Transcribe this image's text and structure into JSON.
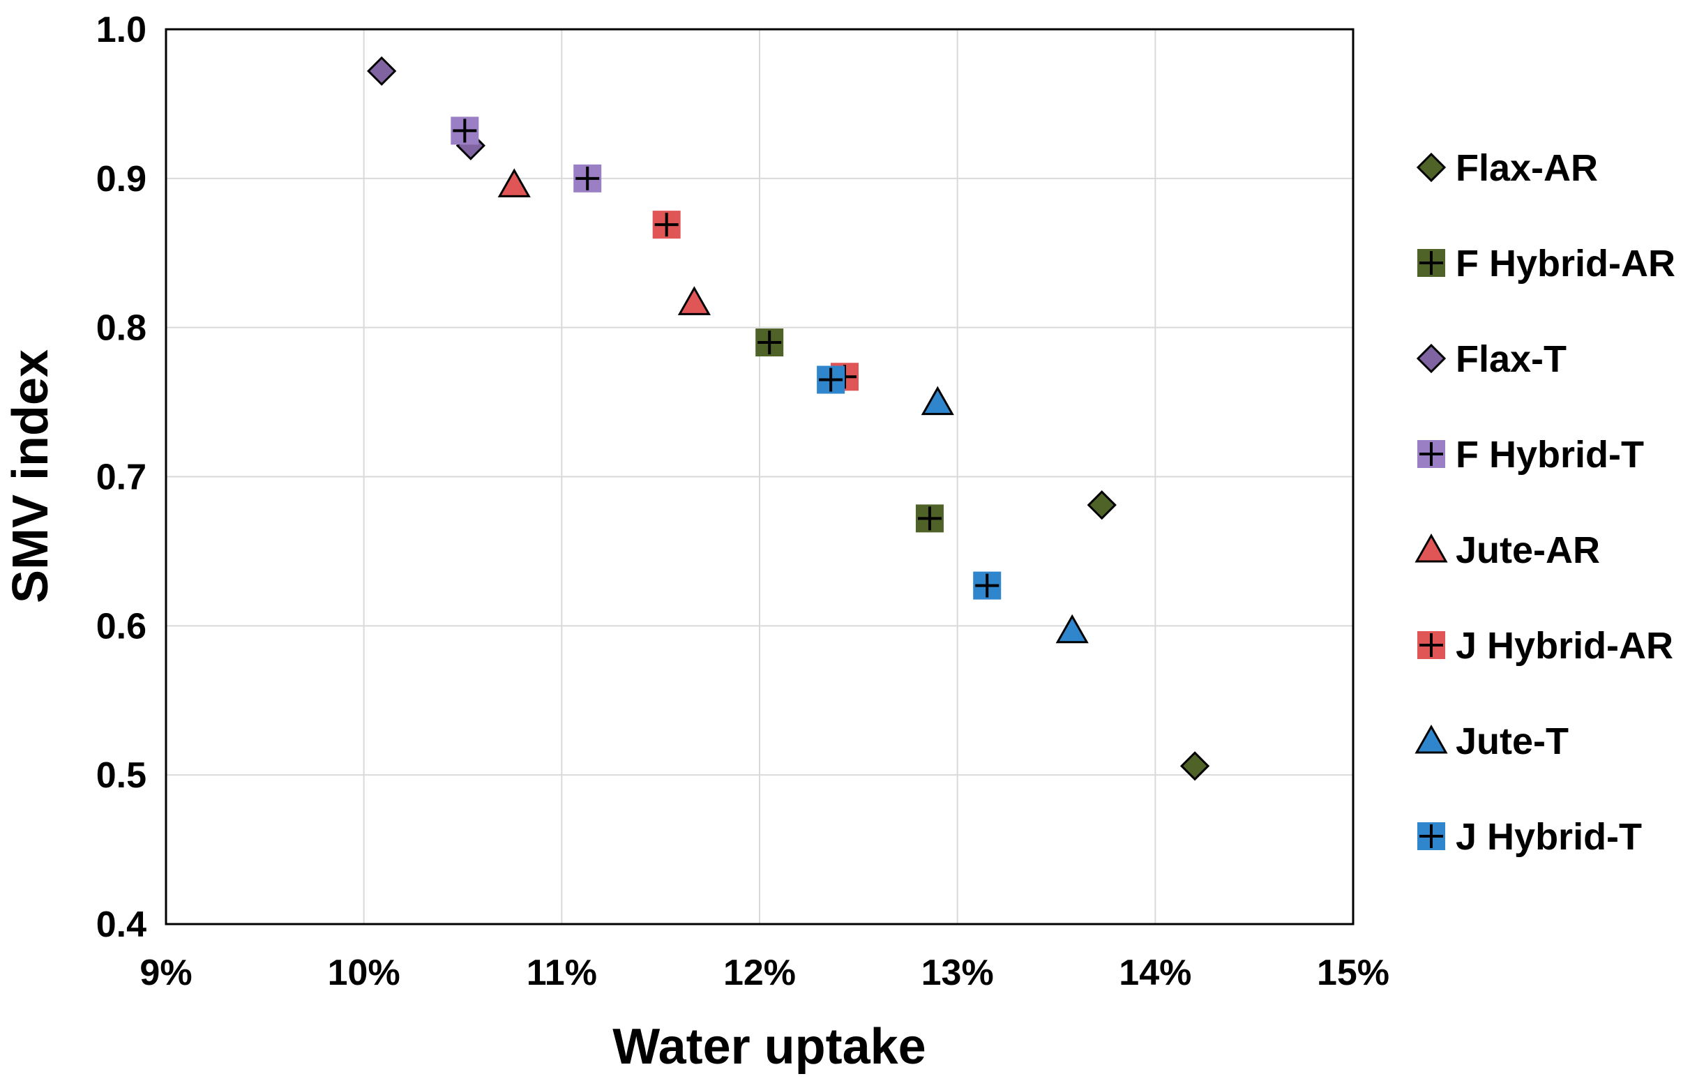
{
  "chart_data": {
    "type": "scatter",
    "title": "",
    "xlabel": "Water uptake",
    "ylabel": "SMV index",
    "xlim": [
      0.09,
      0.15
    ],
    "ylim": [
      0.4,
      1.0
    ],
    "x_ticks": [
      0.09,
      0.1,
      0.11,
      0.12,
      0.13,
      0.14,
      0.15
    ],
    "x_tick_labels": [
      "9%",
      "10%",
      "11%",
      "12%",
      "13%",
      "14%",
      "15%"
    ],
    "y_ticks": [
      0.4,
      0.5,
      0.6,
      0.7,
      0.8,
      0.9,
      1.0
    ],
    "y_tick_labels": [
      "0.4",
      "0.5",
      "0.6",
      "0.7",
      "0.8",
      "0.9",
      "1.0"
    ],
    "grid": true,
    "legend_position": "right",
    "series": [
      {
        "name": "Flax-AR",
        "marker": "diamond",
        "color": "#4f6228",
        "cross": false,
        "points": [
          [
            0.1373,
            0.681
          ],
          [
            0.142,
            0.506
          ]
        ]
      },
      {
        "name": "F Hybrid-AR",
        "marker": "square",
        "color": "#4f6228",
        "cross": true,
        "points": [
          [
            0.1205,
            0.79
          ],
          [
            0.1286,
            0.672
          ]
        ]
      },
      {
        "name": "Flax-T",
        "marker": "diamond",
        "color": "#8064a2",
        "cross": false,
        "points": [
          [
            0.1009,
            0.972
          ],
          [
            0.1054,
            0.922
          ]
        ]
      },
      {
        "name": "F Hybrid-T",
        "marker": "square",
        "color": "#9b7fc4",
        "cross": true,
        "points": [
          [
            0.1051,
            0.932
          ],
          [
            0.1113,
            0.9
          ]
        ]
      },
      {
        "name": "Jute-AR",
        "marker": "triangle",
        "color": "#e05555",
        "cross": false,
        "points": [
          [
            0.1076,
            0.896
          ],
          [
            0.1167,
            0.817
          ]
        ]
      },
      {
        "name": "J Hybrid-AR",
        "marker": "square",
        "color": "#e05555",
        "cross": true,
        "points": [
          [
            0.1153,
            0.869
          ],
          [
            0.1243,
            0.767
          ]
        ]
      },
      {
        "name": "Jute-T",
        "marker": "triangle",
        "color": "#2f86cc",
        "cross": false,
        "points": [
          [
            0.129,
            0.75
          ],
          [
            0.1358,
            0.597
          ]
        ]
      },
      {
        "name": "J Hybrid-T",
        "marker": "square",
        "color": "#2f86cc",
        "cross": true,
        "points": [
          [
            0.1236,
            0.765
          ],
          [
            0.1315,
            0.627
          ]
        ]
      }
    ]
  }
}
